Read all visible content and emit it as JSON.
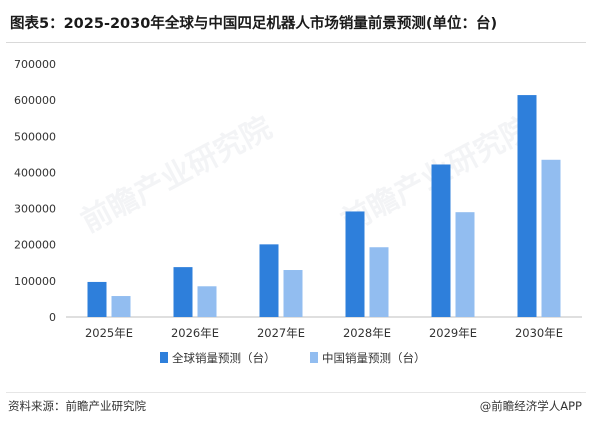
{
  "header": {
    "title": "图表5：2025-2030年全球与中国四足机器人市场销量前景预测(单位：台)"
  },
  "watermark": "前瞻产业研究院",
  "footer": {
    "source": "资料来源：前瞻产业研究院",
    "brand": "@前瞻经济学人APP"
  },
  "chart_data": {
    "type": "bar",
    "categories": [
      "2025年E",
      "2026年E",
      "2027年E",
      "2028年E",
      "2029年E",
      "2030年E"
    ],
    "series": [
      {
        "name": "全球销量预测（台）",
        "color": "#2e7fdb",
        "values": [
          97000,
          138000,
          201000,
          292000,
          422000,
          614000
        ]
      },
      {
        "name": "中国销量预测（台）",
        "color": "#92bdf0",
        "values": [
          58000,
          85000,
          130000,
          193000,
          290000,
          435000
        ]
      }
    ],
    "yticks": [
      "0",
      "100000",
      "200000",
      "300000",
      "400000",
      "500000",
      "600000",
      "700000"
    ],
    "ylim": [
      0,
      700000
    ],
    "grid": false,
    "legend_position": "bottom-center"
  }
}
